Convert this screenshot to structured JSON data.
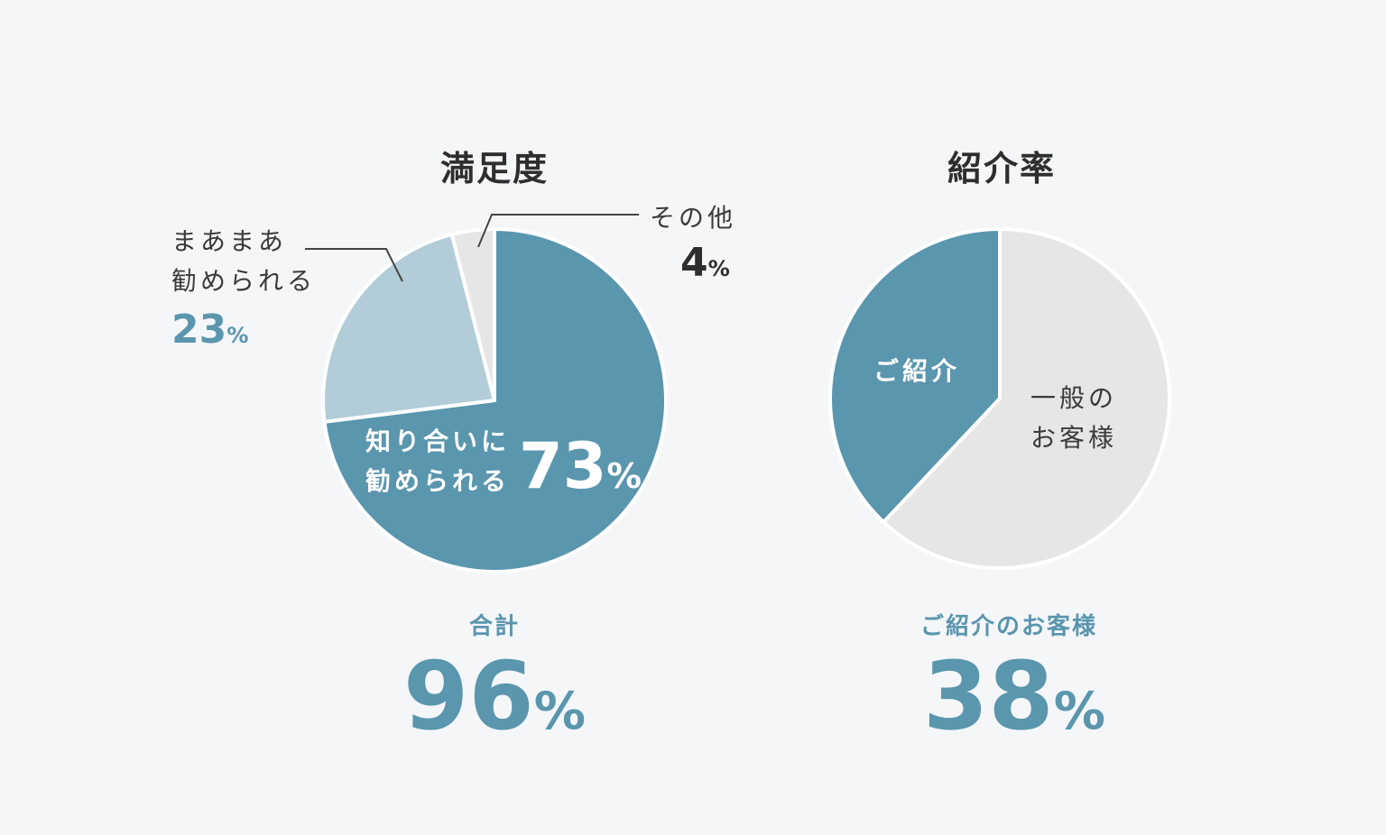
{
  "colors": {
    "main": "#5a96ae",
    "light": "#b2cdd8",
    "grey": "#e6e6e6",
    "text_dark": "#2e2e2e",
    "background": "#f4f6f8"
  },
  "chart_data": [
    {
      "type": "pie",
      "title": "満足度",
      "slices": [
        {
          "label": "知り合いに勧められる",
          "value": 73
        },
        {
          "label": "まあまあ勧められる",
          "value": 23
        },
        {
          "label": "その他",
          "value": 4
        }
      ],
      "total_label": "合計",
      "total_value": "96",
      "unit": "%"
    },
    {
      "type": "pie",
      "title": "紹介率",
      "slices": [
        {
          "label": "ご紹介",
          "value": 38
        },
        {
          "label": "一般のお客様",
          "value": 62
        }
      ],
      "total_label": "ご紹介のお客様",
      "total_value": "38",
      "unit": "%"
    }
  ],
  "labels": {
    "c1_main_line1": "知り合いに",
    "c1_main_line2": "勧められる",
    "c1_main_pct": "73",
    "c1_mid_line1": "まあまあ",
    "c1_mid_line2": "勧められる",
    "c1_mid_pct": "23",
    "c1_other_line1": "その他",
    "c1_other_pct": "4",
    "c2_main": "ご紹介",
    "c2_rest_line1": "一般の",
    "c2_rest_line2": "お客様",
    "pct_sign": "%"
  }
}
